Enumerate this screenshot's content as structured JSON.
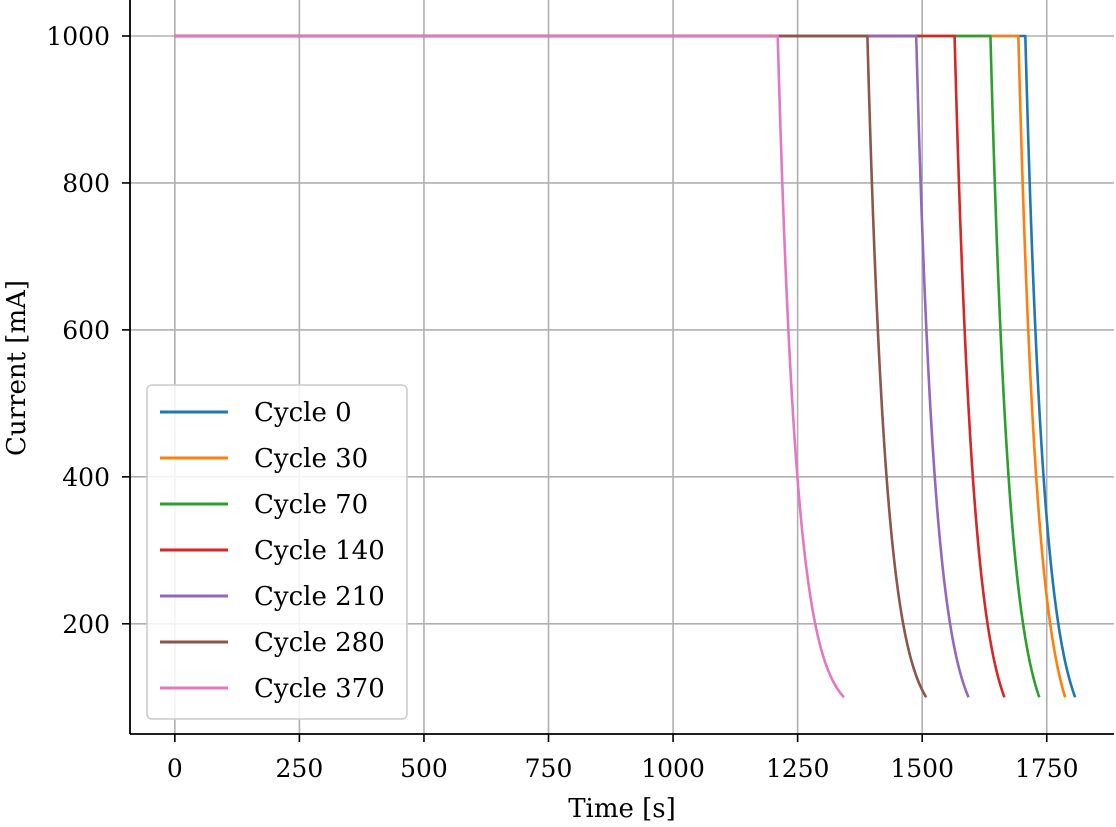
{
  "chart_data": {
    "type": "line",
    "title": "",
    "xlabel": "Time [s]",
    "ylabel": "Current [mA]",
    "xlim": [
      -90,
      1885
    ],
    "ylim": [
      50,
      1049
    ],
    "x_ticks": [
      0,
      250,
      500,
      750,
      1000,
      1250,
      1500,
      1750
    ],
    "y_ticks": [
      200,
      400,
      600,
      800,
      1000
    ],
    "grid": true,
    "legend_position": "lower-left",
    "decay_tau_s": 38,
    "series": [
      {
        "name": "Cycle 0",
        "color": "#1f77b4",
        "plateau_start": 0,
        "plateau_value": 1000,
        "decay_start": 1707,
        "end_time": 1807,
        "end_value": 100
      },
      {
        "name": "Cycle 30",
        "color": "#ff7f0e",
        "plateau_start": 0,
        "plateau_value": 1000,
        "decay_start": 1693,
        "end_time": 1787,
        "end_value": 100
      },
      {
        "name": "Cycle 70",
        "color": "#2ca02c",
        "plateau_start": 0,
        "plateau_value": 1000,
        "decay_start": 1637,
        "end_time": 1735,
        "end_value": 100
      },
      {
        "name": "Cycle 140",
        "color": "#d62728",
        "plateau_start": 0,
        "plateau_value": 1000,
        "decay_start": 1565,
        "end_time": 1665,
        "end_value": 100
      },
      {
        "name": "Cycle 210",
        "color": "#9467bd",
        "plateau_start": 0,
        "plateau_value": 1000,
        "decay_start": 1488,
        "end_time": 1593,
        "end_value": 100
      },
      {
        "name": "Cycle 280",
        "color": "#8c564b",
        "plateau_start": 0,
        "plateau_value": 1000,
        "decay_start": 1390,
        "end_time": 1508,
        "end_value": 100
      },
      {
        "name": "Cycle 370",
        "color": "#e377c2",
        "plateau_start": 0,
        "plateau_value": 1000,
        "decay_start": 1210,
        "end_time": 1343,
        "end_value": 100
      }
    ]
  }
}
